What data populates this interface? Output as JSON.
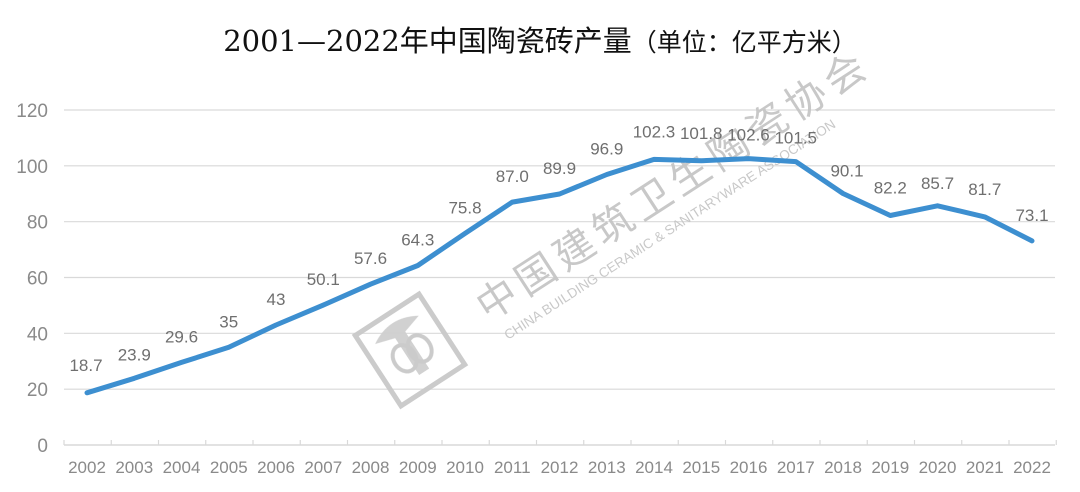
{
  "title": {
    "main": "2001—2022年中国陶瓷砖产量",
    "unit": "（单位：亿平方米）"
  },
  "watermark": {
    "cn": "中国建筑卫生陶瓷协会",
    "en": "CHINA BUILDING CERAMIC & SANITARYWARE ASSOCIATION",
    "icon": "association-logo-icon"
  },
  "colors": {
    "line": "#3d8fd0",
    "grid": "#d9d9d9",
    "tick_text": "#8a8a8a",
    "label_text": "#6f6f6f"
  },
  "chart_data": {
    "type": "line",
    "title": "2001—2022年中国陶瓷砖产量（单位：亿平方米）",
    "xlabel": "",
    "ylabel": "亿平方米",
    "categories": [
      "2002",
      "2003",
      "2004",
      "2005",
      "2006",
      "2007",
      "2008",
      "2009",
      "2010",
      "2011",
      "2012",
      "2013",
      "2014",
      "2015",
      "2016",
      "2017",
      "2018",
      "2019",
      "2020",
      "2021",
      "2022"
    ],
    "series": [
      {
        "name": "陶瓷砖产量",
        "values": [
          18.7,
          23.9,
          29.6,
          35,
          43,
          50.1,
          57.6,
          64.3,
          75.8,
          87.0,
          89.9,
          96.9,
          102.3,
          101.8,
          102.6,
          101.5,
          90.1,
          82.2,
          85.7,
          81.7,
          73.1
        ],
        "labels": [
          "18.7",
          "23.9",
          "29.6",
          "35",
          "43",
          "50.1",
          "57.6",
          "64.3",
          "75.8",
          "87.0",
          "89.9",
          "96.9",
          "102.3",
          "101.8",
          "102.6",
          "101.5",
          "90.1",
          "82.2",
          "85.7",
          "81.7",
          "73.1"
        ]
      }
    ],
    "yticks": [
      "0",
      "20",
      "40",
      "60",
      "80",
      "100",
      "120"
    ],
    "ylim": [
      0,
      120
    ],
    "grid": true,
    "legend": "none"
  }
}
